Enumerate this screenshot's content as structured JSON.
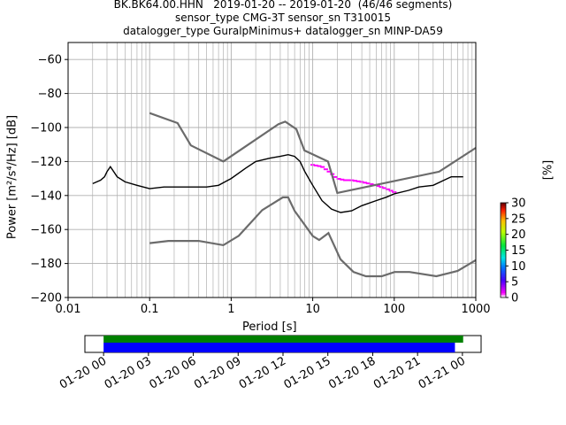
{
  "header": {
    "title_line1": "BK.BK64.00.HHN   2019-01-20 -- 2019-01-20  (46/46 segments)",
    "title_line2": "sensor_type CMG-3T sensor_sn T310015",
    "title_line3": "datalogger_type GuralpMinimus+ datalogger_sn MINP-DA59"
  },
  "chart_data": {
    "type": "heatmap",
    "xlabel": "Period [s]",
    "ylabel": "Power [m²/s⁴/Hz] [dB]",
    "xscale": "log",
    "xlim": [
      0.01,
      1000
    ],
    "ylim": [
      -200,
      -50
    ],
    "x_ticks": [
      "0.01",
      "0.1",
      "1",
      "10",
      "100",
      "1000"
    ],
    "y_ticks": [
      "−200",
      "−180",
      "−160",
      "−140",
      "−120",
      "−100",
      "−80",
      "−60"
    ],
    "grid": true,
    "colorbar": {
      "label": "[%]",
      "min": 0,
      "max": 30,
      "ticks": [
        "0",
        "5",
        "10",
        "15",
        "20",
        "25",
        "30"
      ]
    },
    "nhnm": {
      "name": "NHNM",
      "period": [
        0.1,
        0.22,
        0.32,
        0.8,
        3.8,
        4.6,
        6.3,
        7.9,
        15.4,
        20,
        354.8,
        1000
      ],
      "db": [
        -91.5,
        -97.4,
        -110.5,
        -120,
        -98,
        -96.5,
        -101,
        -113.5,
        -120,
        -138.5,
        -126,
        -112
      ]
    },
    "nlnm": {
      "name": "NLNM",
      "period": [
        0.1,
        0.17,
        0.4,
        0.8,
        1.24,
        2.4,
        4.3,
        5,
        6,
        10,
        12,
        15.6,
        21.9,
        31.6,
        45,
        70,
        101,
        154,
        328,
        600,
        1000
      ],
      "db": [
        -168,
        -166.7,
        -166.7,
        -169.2,
        -163.7,
        -148.6,
        -141.1,
        -141.1,
        -149,
        -163.8,
        -166.2,
        -162.1,
        -177.5,
        -185,
        -187.5,
        -187.5,
        -185,
        -185,
        -187.5,
        -184.4,
        -178
      ]
    },
    "mode_line": {
      "period": [
        0.02,
        0.025,
        0.028,
        0.03,
        0.033,
        0.04,
        0.05,
        0.07,
        0.1,
        0.15,
        0.2,
        0.3,
        0.5,
        0.7,
        1,
        1.5,
        2,
        3,
        4,
        5,
        6,
        7,
        8,
        10,
        13,
        17,
        22,
        30,
        40,
        60,
        80,
        100,
        150,
        200,
        300,
        500,
        700
      ],
      "db": [
        -133,
        -131,
        -129,
        -126,
        -123,
        -129,
        -132,
        -134,
        -136,
        -135,
        -135,
        -135,
        -135,
        -134,
        -130,
        -124,
        -120,
        -118,
        -117,
        -116,
        -117,
        -120,
        -126,
        -134,
        -143,
        -148,
        -150,
        -149,
        -146,
        -143,
        -141,
        -139,
        -137,
        -135,
        -134,
        -129,
        -129
      ]
    },
    "spread": {
      "period": [
        0.02,
        0.025,
        0.028,
        0.03,
        0.033,
        0.04,
        0.05,
        0.07,
        0.1,
        0.15,
        0.2,
        0.3,
        0.5,
        0.7,
        1,
        1.5,
        2,
        3,
        4,
        5,
        6,
        7,
        8,
        10,
        13,
        17,
        22,
        30,
        40,
        60,
        80,
        100,
        150,
        200,
        300,
        500,
        700
      ],
      "upper": [
        -131,
        -129,
        -127,
        -123,
        -120,
        -125,
        -128,
        -130,
        -130,
        -130,
        -130,
        -130,
        -130,
        -129,
        -126,
        -120,
        -117,
        -116,
        -115,
        -114,
        -114,
        -116,
        -120,
        -126,
        -134,
        -139,
        -141,
        -142,
        -141,
        -138,
        -136,
        -134,
        -132,
        -130,
        -129,
        -126,
        -126
      ],
      "lower": [
        -135,
        -133,
        -131,
        -129,
        -127,
        -133,
        -137,
        -139,
        -140,
        -139,
        -139,
        -138,
        -138,
        -137,
        -134,
        -128,
        -123,
        -120,
        -119,
        -118,
        -120,
        -124,
        -131,
        -140,
        -149,
        -154,
        -156,
        -155,
        -152,
        -148,
        -145,
        -143,
        -141,
        -139,
        -137,
        -132,
        -131
      ]
    },
    "outlier_curve": {
      "period": [
        10,
        13,
        17,
        20,
        25,
        30,
        40,
        60,
        80,
        100
      ],
      "db": [
        -122,
        -123,
        -127,
        -130,
        -131,
        -131,
        -132,
        -134,
        -136,
        -138
      ]
    }
  },
  "coverage": {
    "ticks": [
      "01-20 00",
      "01-20 03",
      "01-20 06",
      "01-20 09",
      "01-20 12",
      "01-20 15",
      "01-20 18",
      "01-20 21",
      "01-21 00"
    ],
    "range_hours": [
      -1.25,
      25.25
    ],
    "data_bar_hours": [
      0,
      24.05
    ],
    "processed_bar_hours": [
      0,
      23.5
    ],
    "data_color": "#008000",
    "processed_color": "#0000ff"
  }
}
